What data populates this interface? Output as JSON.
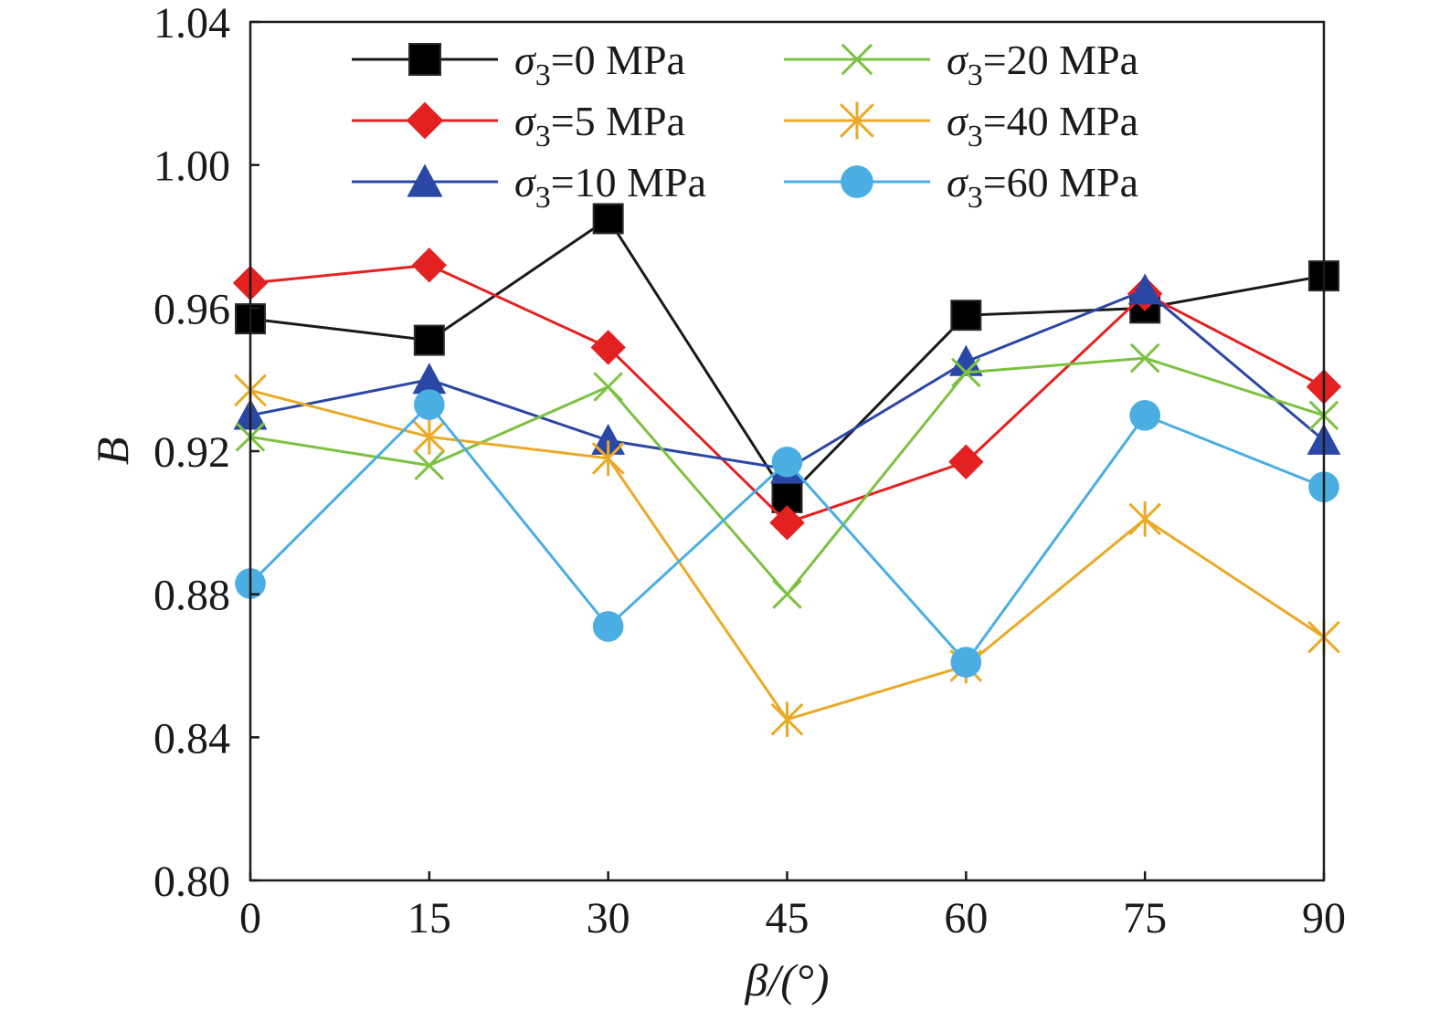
{
  "chart_data": {
    "type": "line",
    "xlabel": "β/(°)",
    "ylabel": "B",
    "x": [
      0,
      15,
      30,
      45,
      60,
      75,
      90
    ],
    "xlim": [
      0,
      90
    ],
    "ylim": [
      0.8,
      1.04
    ],
    "x_ticks": [
      "0",
      "15",
      "30",
      "45",
      "60",
      "75",
      "90"
    ],
    "y_ticks": [
      "0.80",
      "0.84",
      "0.88",
      "0.92",
      "0.96",
      "1.00",
      "1.04"
    ],
    "grid": false,
    "legend": "top, two columns",
    "series": [
      {
        "name": "σ3=0 MPa",
        "color": "#1a1a1a",
        "marker": "square",
        "values": [
          0.957,
          0.951,
          0.985,
          0.907,
          0.958,
          0.96,
          0.969
        ]
      },
      {
        "name": "σ3=5 MPa",
        "color": "#e42121",
        "marker": "diamond",
        "values": [
          0.967,
          0.972,
          0.949,
          0.9,
          0.917,
          0.964,
          0.938
        ]
      },
      {
        "name": "σ3=10 MPa",
        "color": "#2b47a6",
        "marker": "triangle",
        "values": [
          0.93,
          0.94,
          0.923,
          0.915,
          0.945,
          0.965,
          0.923
        ]
      },
      {
        "name": "σ3=20 MPa",
        "color": "#7cc242",
        "marker": "x",
        "values": [
          0.924,
          0.916,
          0.938,
          0.88,
          0.942,
          0.946,
          0.93
        ]
      },
      {
        "name": "σ3=40 MPa",
        "color": "#eaaa28",
        "marker": "asterisk",
        "values": [
          0.937,
          0.924,
          0.918,
          0.845,
          0.86,
          0.901,
          0.868
        ]
      },
      {
        "name": "σ3=60 MPa",
        "color": "#4aaee3",
        "marker": "circle",
        "values": [
          0.883,
          0.933,
          0.871,
          0.917,
          0.861,
          0.93,
          0.91
        ]
      }
    ]
  }
}
